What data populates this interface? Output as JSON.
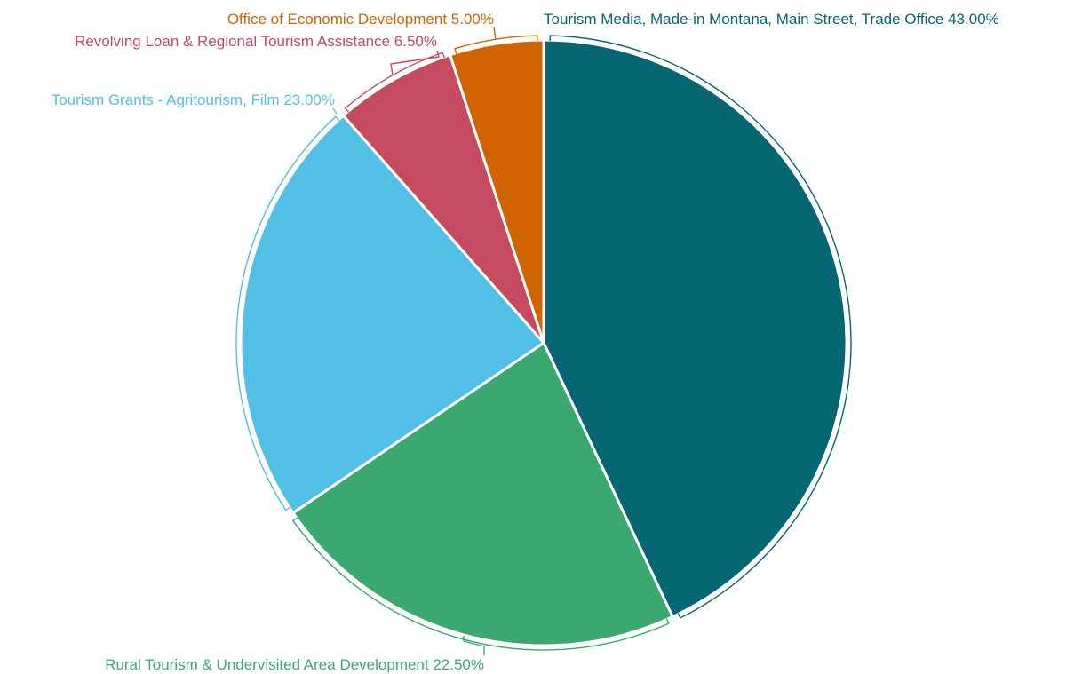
{
  "chart_data": {
    "type": "pie",
    "title": "",
    "slices": [
      {
        "label": "Tourism Media, Made-in Montana, Main Street, Trade Office",
        "value": 43.0,
        "display": "43.00%",
        "color": "#066672"
      },
      {
        "label": "Rural Tourism & Undervisited Area Development",
        "value": 22.5,
        "display": "22.50%",
        "color": "#3aa86f"
      },
      {
        "label": "Tourism Grants - Agritourism, Film",
        "value": 23.0,
        "display": "23.00%",
        "color": "#51c0e4"
      },
      {
        "label": "Revolving Loan & Regional Tourism Assistance",
        "value": 6.5,
        "display": "6.50%",
        "color": "#c64a60"
      },
      {
        "label": "Office of Economic Development",
        "value": 5.0,
        "display": "5.00%",
        "color": "#d26400"
      }
    ]
  }
}
